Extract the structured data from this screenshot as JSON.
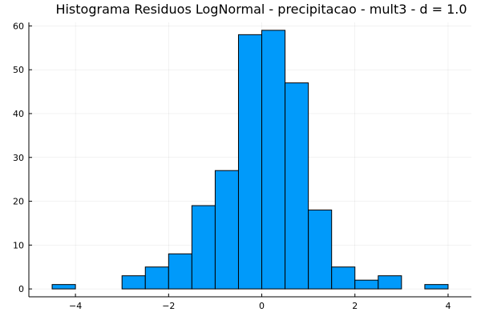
{
  "chart_data": {
    "type": "bar",
    "title": "Histograma Residuos LogNormal - precipitacao - mult3 - d = 1.0",
    "xlabel": "",
    "ylabel": "",
    "bin_edges": [
      -4.5,
      -4.0,
      -3.5,
      -3.0,
      -2.5,
      -2.0,
      -1.5,
      -1.0,
      -0.5,
      0.0,
      0.5,
      1.0,
      1.5,
      2.0,
      2.5,
      3.0,
      3.5,
      4.0
    ],
    "values": [
      1,
      0,
      0,
      3,
      5,
      8,
      19,
      27,
      58,
      59,
      47,
      18,
      5,
      2,
      3,
      0,
      1
    ],
    "xlim": [
      -5.0,
      4.5
    ],
    "ylim": [
      -1.8,
      60.8
    ],
    "x_ticks": [
      -4,
      -2,
      0,
      2,
      4
    ],
    "x_tick_labels": [
      "−4",
      "−2",
      "0",
      "2",
      "4"
    ],
    "y_ticks": [
      0,
      10,
      20,
      30,
      40,
      50,
      60
    ],
    "y_tick_labels": [
      "0",
      "10",
      "20",
      "30",
      "40",
      "50",
      "60"
    ],
    "grid": true,
    "legend": "none",
    "bar_color": "#009AFA"
  }
}
